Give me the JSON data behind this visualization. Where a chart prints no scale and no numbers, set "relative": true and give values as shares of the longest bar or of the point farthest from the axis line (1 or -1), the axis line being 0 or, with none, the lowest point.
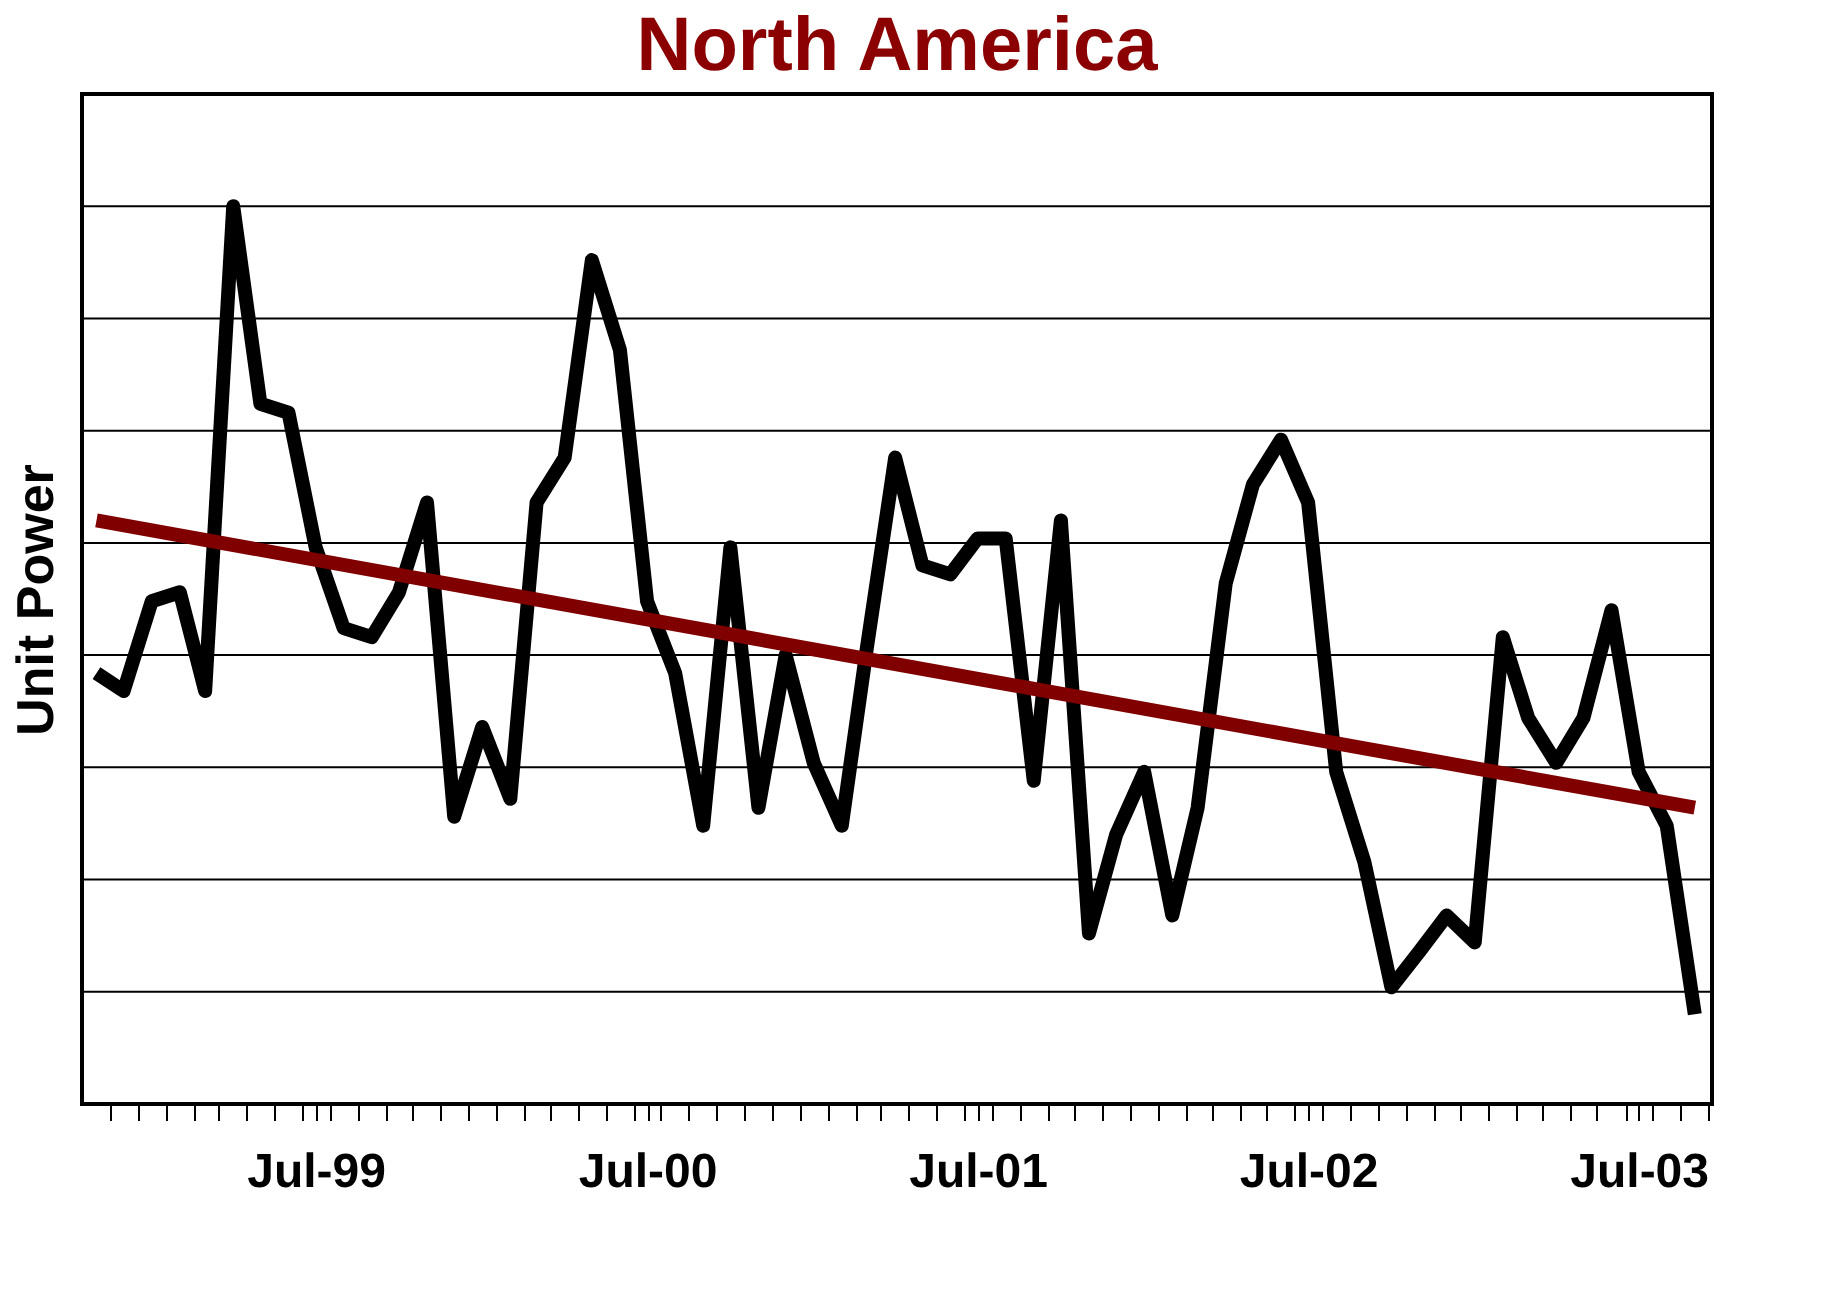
{
  "chart_data": {
    "type": "line",
    "title": "North America",
    "ylabel": "Unit Power",
    "relative": true,
    "grid": "y",
    "marker": "none",
    "line_style": "solid",
    "x": [
      "1998-11",
      "1998-12",
      "1999-01",
      "1999-02",
      "1999-03",
      "1999-04",
      "1999-05",
      "1999-06",
      "1999-07",
      "1999-08",
      "1999-09",
      "1999-10",
      "1999-11",
      "1999-12",
      "2000-01",
      "2000-02",
      "2000-03",
      "2000-04",
      "2000-05",
      "2000-06",
      "2000-07",
      "2000-08",
      "2000-09",
      "2000-10",
      "2000-11",
      "2000-12",
      "2001-01",
      "2001-02",
      "2001-03",
      "2001-04",
      "2001-05",
      "2001-06",
      "2001-07",
      "2001-08",
      "2001-09",
      "2001-10",
      "2001-11",
      "2001-12",
      "2002-01",
      "2002-02",
      "2002-03",
      "2002-04",
      "2002-05",
      "2002-06",
      "2002-07",
      "2002-08",
      "2002-09",
      "2002-10",
      "2002-11",
      "2002-12",
      "2003-01",
      "2003-02",
      "2003-03",
      "2003-04",
      "2003-05",
      "2003-06",
      "2003-07",
      "2003-08",
      "2003-09"
    ],
    "xlim": [
      "1998-10-16",
      "2003-09-20"
    ],
    "xticks": [
      {
        "value": "1999-07",
        "label": "Jul-99"
      },
      {
        "value": "2000-07",
        "label": "Jul-00"
      },
      {
        "value": "2001-07",
        "label": "Jul-01"
      },
      {
        "value": "2002-07",
        "label": "Jul-02"
      },
      {
        "value": "2003-07",
        "label": "Jul-03"
      },
      {
        "value": "1998-11-16",
        "label": null
      },
      {
        "value": "1998-12-16",
        "label": null
      },
      {
        "value": "1999-01-16",
        "label": null
      },
      {
        "value": "1999-02-16",
        "label": null
      },
      {
        "value": "1999-03-16",
        "label": null
      },
      {
        "value": "1999-04-16",
        "label": null
      },
      {
        "value": "1999-05-16",
        "label": null
      },
      {
        "value": "1999-06-16",
        "label": null
      },
      {
        "value": "1999-07-16",
        "label": null
      },
      {
        "value": "1999-08-16",
        "label": null
      },
      {
        "value": "1999-09-16",
        "label": null
      },
      {
        "value": "1999-10-16",
        "label": null
      },
      {
        "value": "1999-11-16",
        "label": null
      },
      {
        "value": "1999-12-16",
        "label": null
      },
      {
        "value": "2000-01-16",
        "label": null
      },
      {
        "value": "2000-02-16",
        "label": null
      },
      {
        "value": "2000-03-16",
        "label": null
      },
      {
        "value": "2000-04-16",
        "label": null
      },
      {
        "value": "2000-05-16",
        "label": null
      },
      {
        "value": "2000-06-16",
        "label": null
      },
      {
        "value": "2000-07-16",
        "label": null
      },
      {
        "value": "2000-08-16",
        "label": null
      },
      {
        "value": "2000-09-16",
        "label": null
      },
      {
        "value": "2000-10-16",
        "label": null
      },
      {
        "value": "2000-11-16",
        "label": null
      },
      {
        "value": "2000-12-16",
        "label": null
      },
      {
        "value": "2001-01-16",
        "label": null
      },
      {
        "value": "2001-02-16",
        "label": null
      },
      {
        "value": "2001-03-16",
        "label": null
      },
      {
        "value": "2001-04-16",
        "label": null
      },
      {
        "value": "2001-05-16",
        "label": null
      },
      {
        "value": "2001-06-16",
        "label": null
      },
      {
        "value": "2001-07-16",
        "label": null
      },
      {
        "value": "2001-08-16",
        "label": null
      },
      {
        "value": "2001-09-16",
        "label": null
      },
      {
        "value": "2001-10-16",
        "label": null
      },
      {
        "value": "2001-11-16",
        "label": null
      },
      {
        "value": "2001-12-16",
        "label": null
      },
      {
        "value": "2002-01-16",
        "label": null
      },
      {
        "value": "2002-02-16",
        "label": null
      },
      {
        "value": "2002-03-16",
        "label": null
      },
      {
        "value": "2002-04-16",
        "label": null
      },
      {
        "value": "2002-05-16",
        "label": null
      },
      {
        "value": "2002-06-16",
        "label": null
      },
      {
        "value": "2002-07-16",
        "label": null
      },
      {
        "value": "2002-08-16",
        "label": null
      },
      {
        "value": "2002-09-16",
        "label": null
      },
      {
        "value": "2002-10-16",
        "label": null
      },
      {
        "value": "2002-11-16",
        "label": null
      },
      {
        "value": "2002-12-16",
        "label": null
      },
      {
        "value": "2003-01-16",
        "label": null
      },
      {
        "value": "2003-02-16",
        "label": null
      },
      {
        "value": "2003-03-16",
        "label": null
      },
      {
        "value": "2003-04-16",
        "label": null
      },
      {
        "value": "2003-05-16",
        "label": null
      },
      {
        "value": "2003-06-16",
        "label": null
      },
      {
        "value": "2003-07-16",
        "label": null
      },
      {
        "value": "2003-08-16",
        "label": null
      },
      {
        "value": "2003-09-16",
        "label": null
      }
    ],
    "series": [
      {
        "color": "#000000",
        "values": [
          0.48,
          0.46,
          0.56,
          0.57,
          0.46,
          1,
          0.78,
          0.77,
          0.62,
          0.53,
          0.52,
          0.57,
          0.67,
          0.32,
          0.42,
          0.34,
          0.67,
          0.72,
          0.94,
          0.84,
          0.56,
          0.48,
          0.31,
          0.62,
          0.33,
          0.5,
          0.38,
          0.31,
          0.51,
          0.72,
          0.6,
          0.59,
          0.63,
          0.63,
          0.36,
          0.65,
          0.19,
          0.3,
          0.37,
          0.21,
          0.33,
          0.58,
          0.69,
          0.74,
          0.67,
          0.37,
          0.27,
          0.13,
          0.17,
          0.21,
          0.18,
          0.52,
          0.43,
          0.38,
          0.43,
          0.55,
          0.37,
          0.31,
          0.1
        ]
      },
      {
        "type": "line",
        "color": "#800000",
        "x": [
          "1998-11",
          "2003-09"
        ],
        "values": [
          0.65,
          0.33
        ]
      }
    ]
  }
}
